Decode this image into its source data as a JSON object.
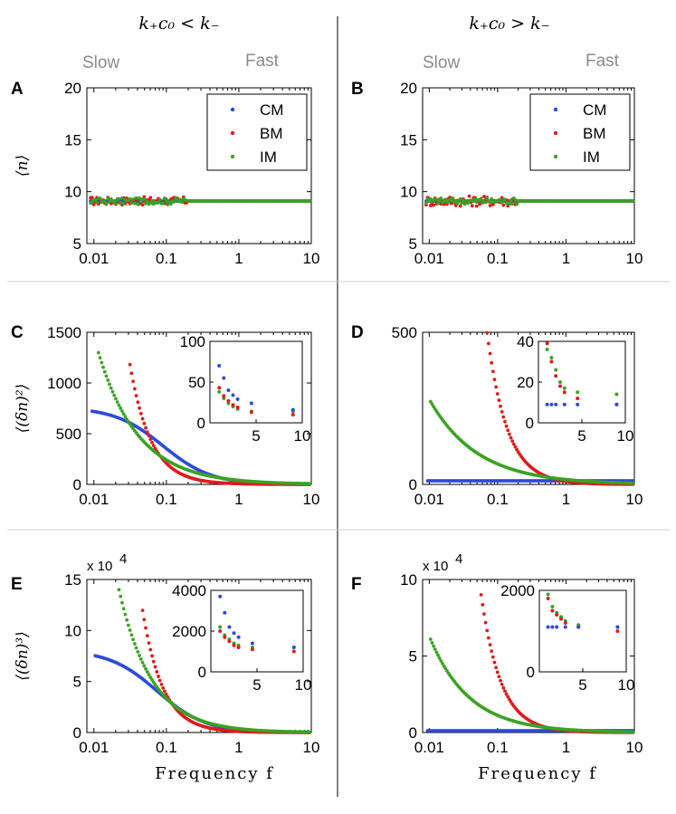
{
  "headers": {
    "left": "k₊c₀ < k₋",
    "right": "k₊c₀ > k₋"
  },
  "speed_labels": {
    "slow": "Slow",
    "fast": "Fast"
  },
  "x_axis_label": "Frequency f",
  "colors": {
    "CM": "#2c4bdb",
    "BM": "#e01b1b",
    "IM": "#3aa323"
  },
  "legend": [
    "CM",
    "BM",
    "IM"
  ],
  "chart_data": [
    {
      "panel": "A",
      "type": "scatter",
      "ylabel": "⟨n⟩",
      "xscale": "log",
      "xlim": [
        0.008,
        10
      ],
      "ylim": [
        5,
        20
      ],
      "xticks": [
        "0.01",
        "0.1",
        "1",
        "10"
      ],
      "yticks": [
        "5",
        "10",
        "15",
        "20"
      ],
      "legend": "top-right",
      "series": [
        {
          "name": "CM",
          "model": "flat",
          "level": 9.1
        },
        {
          "name": "BM",
          "model": "flat",
          "level": 9.1,
          "jitter": 0.4
        },
        {
          "name": "IM",
          "model": "flat",
          "level": 9.1,
          "jitter": 0.3
        }
      ]
    },
    {
      "panel": "B",
      "type": "scatter",
      "ylabel": "",
      "xscale": "log",
      "xlim": [
        0.008,
        10
      ],
      "ylim": [
        5,
        20
      ],
      "xticks": [
        "0.01",
        "0.1",
        "1",
        "10"
      ],
      "yticks": [
        "5",
        "10",
        "15",
        "20"
      ],
      "legend": "top-right",
      "series": [
        {
          "name": "CM",
          "model": "flat",
          "level": 9.1
        },
        {
          "name": "BM",
          "model": "flat",
          "level": 9.1,
          "jitter": 0.5
        },
        {
          "name": "IM",
          "model": "flat",
          "level": 9.1,
          "jitter": 0.3
        }
      ]
    },
    {
      "panel": "C",
      "type": "scatter",
      "ylabel": "⟨(δn)²⟩",
      "xscale": "log",
      "xlim": [
        0.008,
        10
      ],
      "ylim": [
        0,
        1500
      ],
      "xticks": [
        "0.01",
        "0.1",
        "1",
        "10"
      ],
      "yticks": [
        "0",
        "500",
        "1000",
        "1500"
      ],
      "series": [
        {
          "name": "CM",
          "model": "lorentz",
          "a": 760,
          "b": 0,
          "fc": 0.09,
          "start": 0.009
        },
        {
          "name": "BM",
          "model": "power",
          "value_at_start": 1270,
          "p": 1.5,
          "floor": 0,
          "start": 0.03
        },
        {
          "name": "IM",
          "model": "power",
          "value_at_start": 1350,
          "p": 0.78,
          "floor": 0,
          "start": 0.011
        }
      ],
      "inset": {
        "xlim": [
          0,
          10
        ],
        "ylim": [
          0,
          100
        ],
        "xticks": [
          "5",
          "10"
        ],
        "yticks": [
          "0",
          "50",
          "100"
        ],
        "points": {
          "CM": [
            [
              1,
              70
            ],
            [
              1.5,
              55
            ],
            [
              2,
              40
            ],
            [
              2.5,
              34
            ],
            [
              3,
              29
            ],
            [
              4.5,
              24
            ],
            [
              9,
              16
            ]
          ],
          "BM": [
            [
              1,
              43
            ],
            [
              1.5,
              33
            ],
            [
              2,
              27
            ],
            [
              2.5,
              22
            ],
            [
              3,
              19
            ],
            [
              4.5,
              13
            ],
            [
              9,
              10
            ]
          ],
          "IM": [
            [
              1,
              38
            ],
            [
              1.5,
              30
            ],
            [
              2,
              24
            ],
            [
              2.5,
              20
            ],
            [
              3,
              17
            ],
            [
              4.5,
              14
            ],
            [
              9,
              14
            ]
          ]
        }
      }
    },
    {
      "panel": "D",
      "type": "scatter",
      "ylabel": "",
      "xscale": "log",
      "xlim": [
        0.008,
        10
      ],
      "ylim": [
        0,
        500
      ],
      "xticks": [
        "0.01",
        "0.1",
        "1",
        "10"
      ],
      "yticks": [
        "0",
        "500"
      ],
      "series": [
        {
          "name": "CM",
          "model": "flat",
          "level": 12,
          "start": 0.009
        },
        {
          "name": "BM",
          "model": "power",
          "value_at_start": 500,
          "p": 1.47,
          "floor": 0,
          "start": 0.07
        },
        {
          "name": "IM",
          "model": "power",
          "value_at_start": 280,
          "p": 0.62,
          "floor": 0,
          "start": 0.01
        }
      ],
      "inset": {
        "xlim": [
          0,
          10
        ],
        "ylim": [
          0,
          40
        ],
        "xticks": [
          "5",
          "10"
        ],
        "yticks": [
          "0",
          "20",
          "40"
        ],
        "points": {
          "CM": [
            [
              1,
              9
            ],
            [
              1.5,
              9
            ],
            [
              2,
              9
            ],
            [
              3,
              9
            ],
            [
              4.5,
              9
            ],
            [
              9,
              9
            ]
          ],
          "BM": [
            [
              1,
              39
            ],
            [
              1.5,
              30
            ],
            [
              2,
              23
            ],
            [
              2.5,
              18
            ],
            [
              3,
              15
            ],
            [
              4.5,
              12
            ],
            [
              9,
              9
            ]
          ],
          "IM": [
            [
              1,
              36
            ],
            [
              1.5,
              32
            ],
            [
              2,
              26
            ],
            [
              2.5,
              20
            ],
            [
              3,
              17
            ],
            [
              4.5,
              15
            ],
            [
              9,
              14
            ]
          ]
        }
      }
    },
    {
      "panel": "E",
      "type": "scatter",
      "ylabel": "⟨(δn)³⟩",
      "multiplier": "x 10",
      "multiplier_exp": "4",
      "xscale": "log",
      "xlim": [
        0.008,
        10
      ],
      "ylim": [
        0,
        15
      ],
      "xticks": [
        "0.01",
        "0.1",
        "1",
        "10"
      ],
      "yticks": [
        "0",
        "5",
        "10",
        "15"
      ],
      "series": [
        {
          "name": "CM",
          "model": "lorentz",
          "a": 8.1,
          "b": 0,
          "fc": 0.075,
          "start": 0.01
        },
        {
          "name": "BM",
          "model": "power",
          "value_at_start": 12.8,
          "p": 1.55,
          "floor": 0,
          "start": 0.045
        },
        {
          "name": "IM",
          "model": "power",
          "value_at_start": 14.1,
          "p": 0.95,
          "floor": 0,
          "start": 0.022
        }
      ],
      "inset": {
        "xlim": [
          0,
          10
        ],
        "ylim": [
          0,
          4000
        ],
        "xticks": [
          "5",
          "10"
        ],
        "yticks": [
          "0",
          "2000",
          "4000"
        ],
        "points": {
          "CM": [
            [
              1,
              3700
            ],
            [
              1.5,
              2900
            ],
            [
              2,
              2200
            ],
            [
              2.5,
              1900
            ],
            [
              3,
              1700
            ],
            [
              4.5,
              1400
            ],
            [
              9,
              1200
            ]
          ],
          "BM": [
            [
              1,
              2000
            ],
            [
              1.5,
              1700
            ],
            [
              2,
              1500
            ],
            [
              2.5,
              1300
            ],
            [
              3,
              1200
            ],
            [
              4.5,
              1100
            ],
            [
              9,
              1000
            ]
          ],
          "IM": [
            [
              1,
              2200
            ],
            [
              1.5,
              1800
            ],
            [
              2,
              1600
            ],
            [
              2.5,
              1400
            ],
            [
              3,
              1300
            ],
            [
              4.5,
              1200
            ],
            [
              9,
              1200
            ]
          ]
        }
      }
    },
    {
      "panel": "F",
      "type": "scatter",
      "ylabel": "",
      "multiplier": "x 10",
      "multiplier_exp": "4",
      "xscale": "log",
      "xlim": [
        0.008,
        10
      ],
      "ylim": [
        0,
        10
      ],
      "xticks": [
        "0.01",
        "0.1",
        "1",
        "10"
      ],
      "yticks": [
        "0",
        "5",
        "10"
      ],
      "series": [
        {
          "name": "CM",
          "model": "flat",
          "level": 0.12,
          "start": 0.009
        },
        {
          "name": "BM",
          "model": "power",
          "value_at_start": 9.6,
          "p": 1.5,
          "floor": 0,
          "start": 0.055
        },
        {
          "name": "IM",
          "model": "power",
          "value_at_start": 6.3,
          "p": 0.75,
          "floor": 0,
          "start": 0.01
        }
      ],
      "inset": {
        "xlim": [
          0,
          10
        ],
        "ylim": [
          0,
          2000
        ],
        "xticks": [
          "5",
          "10"
        ],
        "yticks": [
          "0",
          "2000"
        ],
        "points": {
          "CM": [
            [
              1,
              1100
            ],
            [
              1.5,
              1100
            ],
            [
              2,
              1100
            ],
            [
              3,
              1100
            ],
            [
              4.5,
              1100
            ],
            [
              9,
              1100
            ]
          ],
          "BM": [
            [
              1,
              1800
            ],
            [
              1.5,
              1500
            ],
            [
              2,
              1400
            ],
            [
              2.5,
              1300
            ],
            [
              3,
              1200
            ],
            [
              4.5,
              1100
            ],
            [
              9,
              1000
            ]
          ],
          "IM": [
            [
              1,
              1900
            ],
            [
              1.5,
              1600
            ],
            [
              2,
              1450
            ],
            [
              2.5,
              1350
            ],
            [
              3,
              1250
            ],
            [
              4.5,
              1150
            ],
            [
              9,
              1100
            ]
          ]
        }
      }
    }
  ]
}
